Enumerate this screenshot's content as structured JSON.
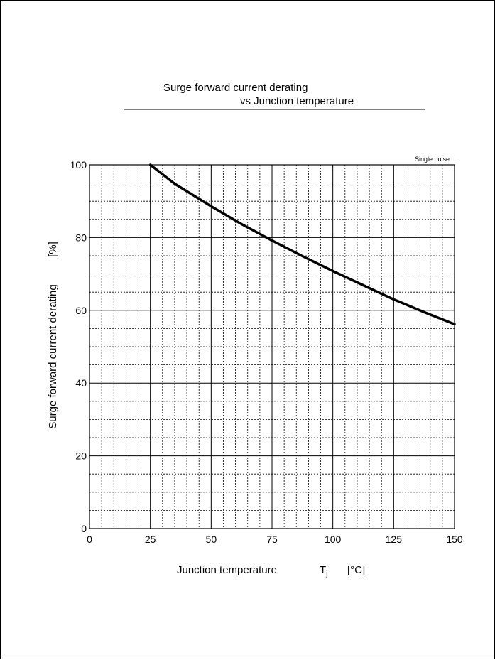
{
  "chart_data": {
    "type": "line",
    "title_line1": "Surge forward current derating",
    "title_line2": "vs Junction temperature",
    "annotation": "Single pulse",
    "xlabel": "Junction temperature",
    "xlabel_symbol": "T",
    "xlabel_subscript": "j",
    "xlabel_unit": "[°C]",
    "ylabel": "Surge forward current derating",
    "ylabel_unit": "[%]",
    "xlim": [
      0,
      150
    ],
    "ylim": [
      0,
      100
    ],
    "xticks": [
      0,
      25,
      50,
      75,
      100,
      125,
      150
    ],
    "yticks": [
      0,
      20,
      40,
      60,
      80,
      100
    ],
    "x_minor_step": 5,
    "y_minor_step": 5,
    "grid": true,
    "series": [
      {
        "x": [
          25,
          35,
          50,
          62.5,
          75,
          87.5,
          100,
          112.5,
          125,
          137.5,
          150
        ],
        "y": [
          100,
          94.8,
          88.6,
          83.7,
          79.2,
          74.9,
          70.8,
          66.9,
          63.0,
          59.5,
          56.2
        ]
      }
    ]
  }
}
